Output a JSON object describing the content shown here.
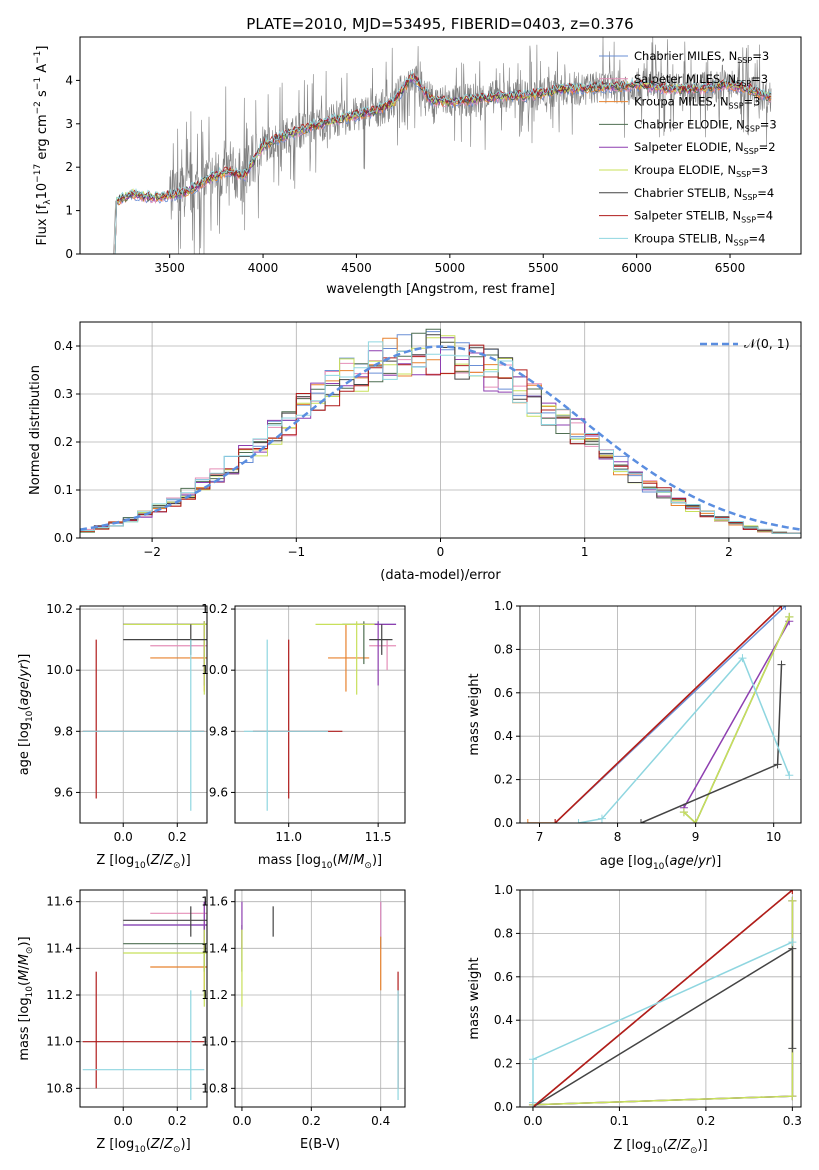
{
  "figure_title": "PLATE=2010, MJD=53495, FIBERID=0403, z=0.376",
  "colors": {
    "Chabrier MILES": "#6a8fd6",
    "Salpeter MILES": "#e58fb8",
    "Kroupa MILES": "#e8822e",
    "Chabrier ELODIE": "#4f6f52",
    "Salpeter ELODIE": "#8e3fb0",
    "Kroupa ELODIE": "#c8e05a",
    "Chabrier STELIB": "#444444",
    "Salpeter STELIB": "#b01c1c",
    "Kroupa STELIB": "#8fd6e0",
    "data": "#808080",
    "gaussian": "#5b8ee0"
  },
  "chart_data": [
    {
      "id": "spectrum",
      "type": "line",
      "title": "PLATE=2010, MJD=53495, FIBERID=0403, z=0.376",
      "xlabel": "wavelength [Angstrom, rest frame]",
      "ylabel": "Flux [f_λ 10^-17 erg cm^-2 s^-1 A^-1]",
      "xlim": [
        3020,
        6880
      ],
      "ylim": [
        0,
        5
      ],
      "xticks": [
        3500,
        4000,
        4500,
        5000,
        5500,
        6000,
        6500
      ],
      "yticks": [
        0,
        1,
        2,
        3,
        4
      ],
      "grid": false,
      "legend_position": "top-right",
      "legend": [
        {
          "name": "Chabrier MILES",
          "label": "Chabrier MILES, N",
          "sub": "SSP",
          "tail": "=3"
        },
        {
          "name": "Salpeter MILES",
          "label": "Salpeter MILES, N",
          "sub": "SSP",
          "tail": "=3"
        },
        {
          "name": "Kroupa MILES",
          "label": "Kroupa MILES, N",
          "sub": "SSP",
          "tail": "=3"
        },
        {
          "name": "Chabrier ELODIE",
          "label": "Chabrier ELODIE, N",
          "sub": "SSP",
          "tail": "=3"
        },
        {
          "name": "Salpeter ELODIE",
          "label": "Salpeter ELODIE, N",
          "sub": "SSP",
          "tail": "=2"
        },
        {
          "name": "Kroupa ELODIE",
          "label": "Kroupa ELODIE, N",
          "sub": "SSP",
          "tail": "=3"
        },
        {
          "name": "Chabrier STELIB",
          "label": "Chabrier STELIB, N",
          "sub": "SSP",
          "tail": "=4"
        },
        {
          "name": "Salpeter STELIB",
          "label": "Salpeter STELIB, N",
          "sub": "SSP",
          "tail": "=4"
        },
        {
          "name": "Kroupa STELIB",
          "label": "Kroupa STELIB, N",
          "sub": "SSP",
          "tail": "=4"
        }
      ],
      "wavelength_range": [
        3200,
        6720
      ],
      "model_continuum": [
        [
          3200,
          0
        ],
        [
          3210,
          1.2
        ],
        [
          3300,
          1.4
        ],
        [
          3400,
          1.3
        ],
        [
          3500,
          1.35
        ],
        [
          3600,
          1.45
        ],
        [
          3700,
          1.7
        ],
        [
          3800,
          1.9
        ],
        [
          3900,
          1.8
        ],
        [
          4000,
          2.5
        ],
        [
          4100,
          2.7
        ],
        [
          4200,
          2.85
        ],
        [
          4300,
          3.0
        ],
        [
          4400,
          3.1
        ],
        [
          4500,
          3.2
        ],
        [
          4600,
          3.3
        ],
        [
          4700,
          3.5
        ],
        [
          4800,
          4.1
        ],
        [
          4900,
          3.55
        ],
        [
          5000,
          3.5
        ],
        [
          5100,
          3.55
        ],
        [
          5200,
          3.6
        ],
        [
          5300,
          3.65
        ],
        [
          5400,
          3.65
        ],
        [
          5500,
          3.7
        ],
        [
          5600,
          3.8
        ],
        [
          5700,
          3.8
        ],
        [
          5800,
          3.85
        ],
        [
          5900,
          3.85
        ],
        [
          6000,
          3.9
        ],
        [
          6100,
          3.85
        ],
        [
          6200,
          3.8
        ],
        [
          6300,
          3.8
        ],
        [
          6400,
          3.85
        ],
        [
          6500,
          3.9
        ],
        [
          6600,
          3.8
        ],
        [
          6720,
          3.6
        ]
      ]
    },
    {
      "id": "residuals",
      "type": "line",
      "xlabel": "(data-model)/error",
      "ylabel": "Normed distribution",
      "xlim": [
        -2.5,
        2.5
      ],
      "ylim": [
        0,
        0.45
      ],
      "xticks": [
        -2,
        -1,
        0,
        1,
        2
      ],
      "yticks": [
        0.0,
        0.1,
        0.2,
        0.3,
        0.4
      ],
      "grid": true,
      "legend_position": "top-right",
      "legend": [
        {
          "name": "gaussian",
          "label": "𝒩(0, 1)"
        }
      ],
      "bins": {
        "start": -2.5,
        "width": 0.1,
        "count": 50
      }
    },
    {
      "id": "age_vs_Z",
      "type": "scatter",
      "xlabel": "Z [log10(Z/Z⊙)]",
      "ylabel": "age [log10(age/yr)]",
      "xlim": [
        -0.16,
        0.31
      ],
      "ylim": [
        9.5,
        10.21
      ],
      "xticks": [
        0.0,
        0.2
      ],
      "yticks": [
        9.6,
        9.8,
        10.0,
        10.2
      ],
      "grid": true
    },
    {
      "id": "age_vs_mass",
      "type": "scatter",
      "xlabel": "mass [log10(M/M⊙)]",
      "ylabel": "",
      "xlim": [
        10.7,
        11.65
      ],
      "ylim": [
        9.5,
        10.21
      ],
      "xticks": [
        11.0,
        11.5
      ],
      "yticks": [
        9.6,
        9.8,
        10.0,
        10.2
      ],
      "grid": true
    },
    {
      "id": "weight_vs_age",
      "type": "line",
      "xlabel": "age [log10(age/yr)]",
      "ylabel": "mass weight",
      "xlim": [
        6.75,
        10.35
      ],
      "ylim": [
        0,
        1
      ],
      "xticks": [
        7,
        8,
        9,
        10
      ],
      "yticks": [
        0.0,
        0.2,
        0.4,
        0.6,
        0.8,
        1.0
      ],
      "grid": true
    },
    {
      "id": "mass_vs_Z",
      "type": "scatter",
      "xlabel": "Z [log10(Z/Z⊙)]",
      "ylabel": "mass [log10(M/M⊙)]",
      "xlim": [
        -0.16,
        0.31
      ],
      "ylim": [
        10.72,
        11.65
      ],
      "xticks": [
        0.0,
        0.2
      ],
      "yticks": [
        10.8,
        11.0,
        11.2,
        11.4,
        11.6
      ],
      "grid": true
    },
    {
      "id": "mass_vs_ebv",
      "type": "scatter",
      "xlabel": "E(B-V)",
      "ylabel": "",
      "xlim": [
        -0.02,
        0.47
      ],
      "ylim": [
        10.72,
        11.65
      ],
      "xticks": [
        0.0,
        0.2,
        0.4
      ],
      "yticks": [
        10.8,
        11.0,
        11.2,
        11.4,
        11.6
      ],
      "grid": true
    },
    {
      "id": "weight_vs_Z",
      "type": "line",
      "xlabel": "Z [log10(Z/Z⊙)]",
      "ylabel": "mass weight",
      "xlim": [
        -0.015,
        0.31
      ],
      "ylim": [
        0,
        1
      ],
      "xticks": [
        0.0,
        0.1,
        0.2,
        0.3
      ],
      "yticks": [
        0.0,
        0.2,
        0.4,
        0.6,
        0.8,
        1.0
      ],
      "grid": true
    }
  ],
  "fits": [
    {
      "name": "Chabrier MILES",
      "age": [
        10.15,
        10.15,
        10.16
      ],
      "Z": [
        0.3,
        0.0,
        0.31
      ],
      "mass": [
        11.5,
        11.4,
        11.6
      ],
      "ebv": 0.4,
      "wa": [
        [
          7.2,
          0
        ],
        [
          10.15,
          1.0
        ]
      ],
      "wz": [
        [
          0,
          0
        ],
        [
          0.3,
          1.0
        ]
      ]
    },
    {
      "name": "Salpeter MILES",
      "age": [
        10.08,
        10.0,
        10.1
      ],
      "Z": [
        0.3,
        0.1,
        0.31
      ],
      "mass": [
        11.55,
        11.45,
        11.6
      ],
      "ebv": 0.4,
      "wa": [
        [
          7.2,
          0
        ],
        [
          10.1,
          1.0
        ]
      ],
      "wz": [
        [
          0,
          0
        ],
        [
          0.3,
          1.0
        ]
      ]
    },
    {
      "name": "Kroupa MILES",
      "age": [
        10.04,
        9.93,
        10.15
      ],
      "Z": [
        0.3,
        0.1,
        0.31
      ],
      "mass": [
        11.32,
        11.22,
        11.45
      ],
      "ebv": 0.4,
      "wa": [
        [
          6.85,
          0
        ],
        [
          7.2,
          0
        ],
        [
          10.1,
          1.0
        ]
      ],
      "wz": [
        [
          0,
          0
        ],
        [
          0.3,
          1.0
        ]
      ]
    },
    {
      "name": "Chabrier ELODIE",
      "age": [
        10.15,
        10.02,
        10.16
      ],
      "Z": [
        0.3,
        0.0,
        0.31
      ],
      "mass": [
        11.42,
        11.3,
        11.5
      ],
      "ebv": 0.0,
      "wa": [
        [
          8.85,
          0.05
        ],
        [
          9.0,
          0
        ],
        [
          10.2,
          0.95
        ]
      ],
      "wz": [
        [
          0,
          0.01
        ],
        [
          0.3,
          0.05
        ],
        [
          0.3,
          0.95
        ]
      ]
    },
    {
      "name": "Salpeter ELODIE",
      "age": [
        10.15,
        9.95,
        10.16
      ],
      "Z": [
        0.3,
        0.0,
        0.31
      ],
      "mass": [
        11.5,
        11.4,
        11.6
      ],
      "ebv": 0.0,
      "wa": [
        [
          8.85,
          0.07
        ],
        [
          10.2,
          0.93
        ]
      ],
      "wz": [
        [
          0,
          0.01
        ],
        [
          0.3,
          0.05
        ],
        [
          0.3,
          0.95
        ]
      ]
    },
    {
      "name": "Kroupa ELODIE",
      "age": [
        10.15,
        9.92,
        10.16
      ],
      "Z": [
        0.3,
        0.0,
        0.31
      ],
      "mass": [
        11.38,
        11.15,
        11.48
      ],
      "ebv": 0.0,
      "wa": [
        [
          8.85,
          0.05
        ],
        [
          9.0,
          0
        ],
        [
          10.2,
          0.95
        ]
      ],
      "wz": [
        [
          0,
          0.01
        ],
        [
          0.3,
          0.05
        ],
        [
          0.3,
          0.95
        ]
      ]
    },
    {
      "name": "Chabrier STELIB",
      "age": [
        10.1,
        10.05,
        10.15
      ],
      "Z": [
        0.25,
        0.0,
        0.31
      ],
      "mass": [
        11.52,
        11.45,
        11.58
      ],
      "ebv": 0.09,
      "wa": [
        [
          8.3,
          0
        ],
        [
          10.05,
          0.27
        ],
        [
          10.1,
          0.73
        ]
      ],
      "wz": [
        [
          0,
          0
        ],
        [
          0.3,
          0.73
        ],
        [
          0.3,
          0.27
        ]
      ]
    },
    {
      "name": "Salpeter STELIB",
      "age": [
        9.8,
        9.58,
        10.1
      ],
      "Z": [
        -0.1,
        -0.15,
        0.3
      ],
      "mass": [
        11.0,
        10.8,
        11.3
      ],
      "ebv": 0.45,
      "wa": [
        [
          7.2,
          0
        ],
        [
          10.1,
          1.0
        ]
      ],
      "wz": [
        [
          0,
          0
        ],
        [
          0.3,
          1.0
        ]
      ]
    },
    {
      "name": "Kroupa STELIB",
      "age": [
        9.8,
        9.54,
        10.1
      ],
      "Z": [
        0.25,
        -0.15,
        0.3
      ],
      "mass": [
        10.88,
        10.75,
        11.22
      ],
      "ebv": 0.45,
      "wa": [
        [
          7.5,
          0
        ],
        [
          7.8,
          0.02
        ],
        [
          9.6,
          0.76
        ],
        [
          10.2,
          0.22
        ]
      ],
      "wz": [
        [
          0,
          0.02
        ],
        [
          0,
          0.22
        ],
        [
          0.3,
          0.76
        ]
      ]
    }
  ]
}
